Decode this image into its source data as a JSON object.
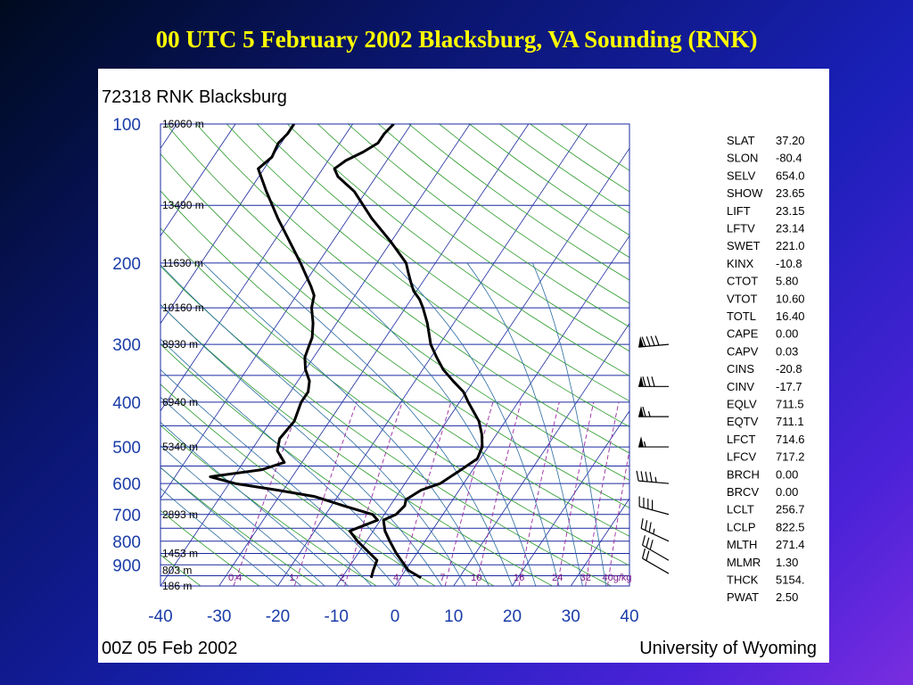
{
  "slide": {
    "title": "00 UTC 5 February 2002 Blacksburg, VA Sounding (RNK)"
  },
  "colors": {
    "isobar": "#1a2aa0",
    "isotherm": "#1a2aa0",
    "dry_adiabat": "#2a9a2a",
    "moist_adiabat": "#2a6aa0",
    "mixing_ratio": "#9a2aa0",
    "profile": "#000000"
  },
  "chart_data": {
    "type": "line",
    "subtype": "skew-T log-p diagram",
    "title": "72318 RNK Blacksburg",
    "footer_left": "00Z 05 Feb 2002",
    "footer_right": "University of Wyoming",
    "pressure_ticks": [
      "100",
      "200",
      "300",
      "400",
      "500",
      "600",
      "700",
      "800",
      "900"
    ],
    "temperature_ticks": [
      "-40",
      "-30",
      "-20",
      "-10",
      "0",
      "10",
      "20",
      "30",
      "40"
    ],
    "ylim": [
      1000,
      100
    ],
    "xlim": [
      -40,
      40
    ],
    "height_labels": [
      {
        "text": "16060 m",
        "p": 100
      },
      {
        "text": "13490 m",
        "p": 150
      },
      {
        "text": "11630 m",
        "p": 200
      },
      {
        "text": "10160 m",
        "p": 250
      },
      {
        "text": "8930 m",
        "p": 300
      },
      {
        "text": "6940 m",
        "p": 400
      },
      {
        "text": "5340 m",
        "p": 500
      },
      {
        "text": "2893 m",
        "p": 700
      },
      {
        "text": "1453 m",
        "p": 850
      },
      {
        "text": "803 m",
        "p": 925
      },
      {
        "text": "186 m",
        "p": 1000
      }
    ],
    "mixing_ratio_labels": [
      "0.4",
      "1",
      "2",
      "4",
      "7",
      "10",
      "16",
      "24",
      "32",
      "40g/kg"
    ],
    "series": [
      {
        "name": "",
        "points": [
          {
            "p": 960,
            "t": 3.5
          },
          {
            "p": 925,
            "t": 0.5
          },
          {
            "p": 850,
            "t": -3.5
          },
          {
            "p": 800,
            "t": -6.0
          },
          {
            "p": 760,
            "t": -8.0
          },
          {
            "p": 720,
            "t": -9.5
          },
          {
            "p": 700,
            "t": -8.0
          },
          {
            "p": 670,
            "t": -7.5
          },
          {
            "p": 650,
            "t": -8.0
          },
          {
            "p": 620,
            "t": -6.5
          },
          {
            "p": 600,
            "t": -4.0
          },
          {
            "p": 560,
            "t": -2.0
          },
          {
            "p": 530,
            "t": -0.5
          },
          {
            "p": 500,
            "t": -1.0
          },
          {
            "p": 470,
            "t": -2.5
          },
          {
            "p": 440,
            "t": -4.5
          },
          {
            "p": 400,
            "t": -8.5
          },
          {
            "p": 380,
            "t": -10.5
          },
          {
            "p": 360,
            "t": -13.5
          },
          {
            "p": 340,
            "t": -16.5
          },
          {
            "p": 320,
            "t": -19.0
          },
          {
            "p": 300,
            "t": -21.5
          },
          {
            "p": 270,
            "t": -24.5
          },
          {
            "p": 250,
            "t": -27.0
          },
          {
            "p": 240,
            "t": -28.5
          },
          {
            "p": 230,
            "t": -30.5
          },
          {
            "p": 220,
            "t": -32.0
          },
          {
            "p": 210,
            "t": -33.5
          },
          {
            "p": 200,
            "t": -35.0
          },
          {
            "p": 180,
            "t": -40.0
          },
          {
            "p": 160,
            "t": -46.0
          },
          {
            "p": 140,
            "t": -52.0
          },
          {
            "p": 130,
            "t": -56.5
          },
          {
            "p": 125,
            "t": -58.0
          },
          {
            "p": 120,
            "t": -57.0
          },
          {
            "p": 115,
            "t": -55.0
          },
          {
            "p": 110,
            "t": -53.5
          },
          {
            "p": 105,
            "t": -53.5
          },
          {
            "p": 100,
            "t": -53.0
          }
        ]
      },
      {
        "name": "",
        "points": [
          {
            "p": 960,
            "t": -5.0
          },
          {
            "p": 925,
            "t": -5.5
          },
          {
            "p": 880,
            "t": -6.0
          },
          {
            "p": 850,
            "t": -8.0
          },
          {
            "p": 800,
            "t": -11.5
          },
          {
            "p": 760,
            "t": -14.0
          },
          {
            "p": 720,
            "t": -10.5
          },
          {
            "p": 700,
            "t": -12.0
          },
          {
            "p": 670,
            "t": -18.0
          },
          {
            "p": 640,
            "t": -24.0
          },
          {
            "p": 620,
            "t": -31.0
          },
          {
            "p": 600,
            "t": -39.0
          },
          {
            "p": 580,
            "t": -44.0
          },
          {
            "p": 560,
            "t": -36.0
          },
          {
            "p": 540,
            "t": -33.0
          },
          {
            "p": 510,
            "t": -35.5
          },
          {
            "p": 480,
            "t": -36.5
          },
          {
            "p": 440,
            "t": -36.0
          },
          {
            "p": 400,
            "t": -37.0
          },
          {
            "p": 380,
            "t": -37.0
          },
          {
            "p": 360,
            "t": -38.0
          },
          {
            "p": 340,
            "t": -40.0
          },
          {
            "p": 320,
            "t": -41.5
          },
          {
            "p": 305,
            "t": -42.0
          },
          {
            "p": 290,
            "t": -42.5
          },
          {
            "p": 270,
            "t": -44.0
          },
          {
            "p": 250,
            "t": -46.0
          },
          {
            "p": 235,
            "t": -47.0
          },
          {
            "p": 225,
            "t": -48.5
          },
          {
            "p": 200,
            "t": -53.0
          },
          {
            "p": 160,
            "t": -62.0
          },
          {
            "p": 140,
            "t": -67.0
          },
          {
            "p": 125,
            "t": -71.0
          },
          {
            "p": 118,
            "t": -70.0
          },
          {
            "p": 110,
            "t": -70.5
          },
          {
            "p": 105,
            "t": -70.0
          },
          {
            "p": 100,
            "t": -70.0
          }
        ]
      }
    ],
    "wind_barbs": [
      {
        "p": 940,
        "dir": 300,
        "kt": 20
      },
      {
        "p": 880,
        "dir": 300,
        "kt": 30
      },
      {
        "p": 800,
        "dir": 295,
        "kt": 35
      },
      {
        "p": 700,
        "dir": 285,
        "kt": 40
      },
      {
        "p": 600,
        "dir": 275,
        "kt": 45
      },
      {
        "p": 500,
        "dir": 270,
        "kt": 55
      },
      {
        "p": 430,
        "dir": 270,
        "kt": 65
      },
      {
        "p": 370,
        "dir": 270,
        "kt": 80
      },
      {
        "p": 300,
        "dir": 265,
        "kt": 90
      }
    ],
    "stations_stats": [
      {
        "label": "SLAT",
        "value": "37.20"
      },
      {
        "label": "SLON",
        "value": "-80.4"
      },
      {
        "label": "SELV",
        "value": "654.0"
      },
      {
        "label": "SHOW",
        "value": "23.65"
      },
      {
        "label": "LIFT",
        "value": "23.15"
      },
      {
        "label": "LFTV",
        "value": "23.14"
      },
      {
        "label": "SWET",
        "value": "221.0"
      },
      {
        "label": "KINX",
        "value": "-10.8"
      },
      {
        "label": "CTOT",
        "value": "5.80"
      },
      {
        "label": "VTOT",
        "value": "10.60"
      },
      {
        "label": "TOTL",
        "value": "16.40"
      },
      {
        "label": "CAPE",
        "value": "0.00"
      },
      {
        "label": "CAPV",
        "value": "0.03"
      },
      {
        "label": "CINS",
        "value": "-20.8"
      },
      {
        "label": "CINV",
        "value": "-17.7"
      },
      {
        "label": "EQLV",
        "value": "711.5"
      },
      {
        "label": "EQTV",
        "value": "711.1"
      },
      {
        "label": "LFCT",
        "value": "714.6"
      },
      {
        "label": "LFCV",
        "value": "717.2"
      },
      {
        "label": "BRCH",
        "value": "0.00"
      },
      {
        "label": "BRCV",
        "value": "0.00"
      },
      {
        "label": "LCLT",
        "value": "256.7"
      },
      {
        "label": "LCLP",
        "value": "822.5"
      },
      {
        "label": "MLTH",
        "value": "271.4"
      },
      {
        "label": "MLMR",
        "value": "1.30"
      },
      {
        "label": "THCK",
        "value": "5154."
      },
      {
        "label": "PWAT",
        "value": "2.50"
      }
    ]
  }
}
